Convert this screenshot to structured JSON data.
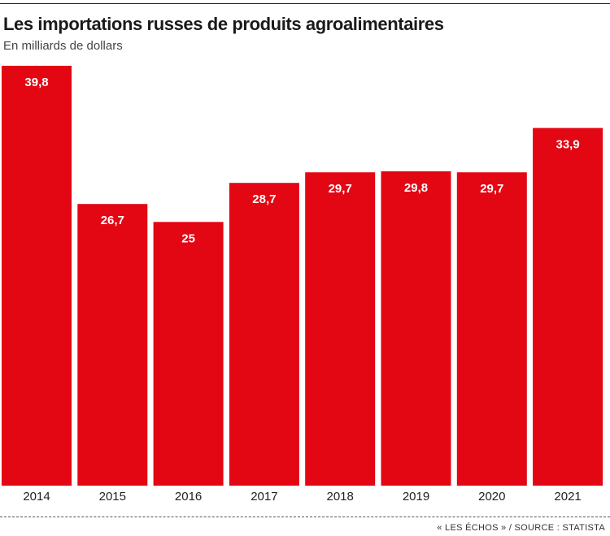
{
  "header": {
    "title": "Les importations russes de produits agroalimentaires",
    "subtitle": "En milliards de dollars"
  },
  "footer": {
    "source": "« LES ÉCHOS » / SOURCE : STATISTA"
  },
  "colors": {
    "bar": "#e30613",
    "bar_label": "#ffffff",
    "axis_text": "#222222"
  },
  "chart_data": {
    "type": "bar",
    "title": "Les importations russes de produits agroalimentaires",
    "subtitle": "En milliards de dollars",
    "categories": [
      "2014",
      "2015",
      "2016",
      "2017",
      "2018",
      "2019",
      "2020",
      "2021"
    ],
    "values": [
      39.8,
      26.7,
      25,
      28.7,
      29.7,
      29.8,
      29.7,
      33.9
    ],
    "value_labels": [
      "39,8",
      "26,7",
      "25",
      "28,7",
      "29,7",
      "29,8",
      "29,7",
      "33,9"
    ],
    "ylim": [
      0,
      39.8
    ],
    "grid": false,
    "legend": "none"
  }
}
